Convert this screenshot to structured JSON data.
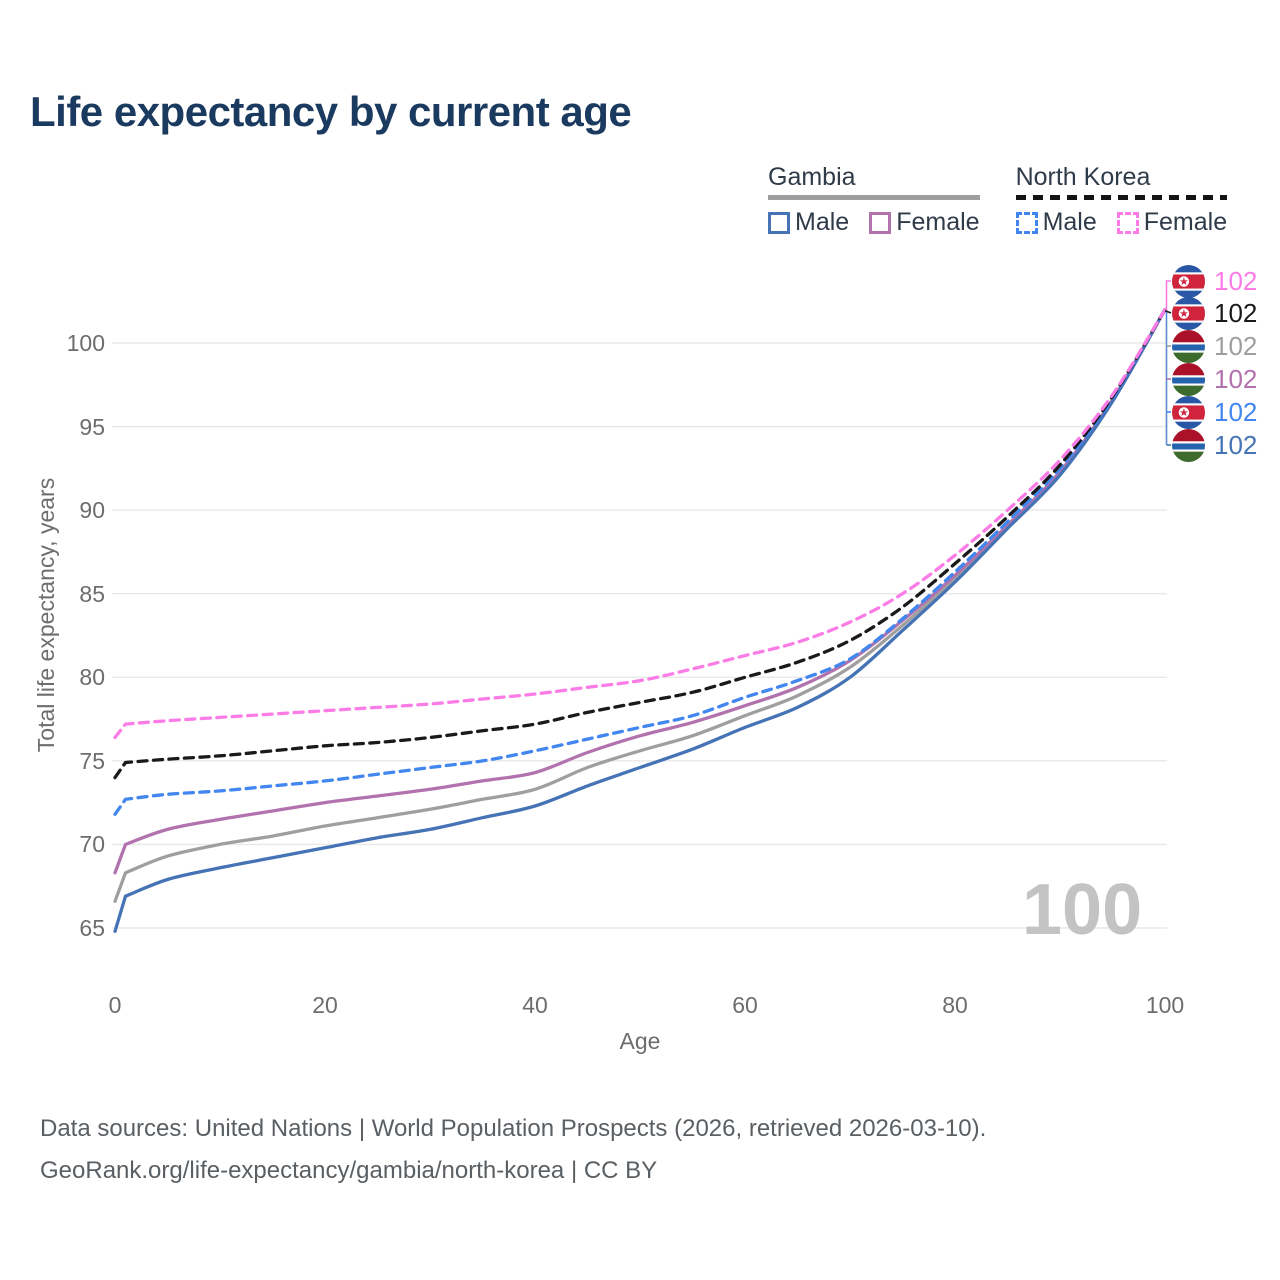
{
  "title": "Life expectancy by current age",
  "legend": {
    "groups": [
      {
        "country": "Gambia",
        "line_style": "solid",
        "underline_color": "#9e9e9e",
        "items": [
          {
            "label": "Male",
            "color": "#4573b5",
            "dashed": false
          },
          {
            "label": "Female",
            "color": "#b172ad",
            "dashed": false
          }
        ]
      },
      {
        "country": "North Korea",
        "line_style": "dashed",
        "underline_color": "#141414",
        "items": [
          {
            "label": "Male",
            "color": "#4286f0",
            "dashed": true
          },
          {
            "label": "Female",
            "color": "#fb7ce6",
            "dashed": true
          }
        ]
      }
    ]
  },
  "chart_data": {
    "type": "line",
    "title": "Life expectancy by current age",
    "xlabel": "Age",
    "ylabel": "Total life expectancy, years",
    "x_ticks": [
      0,
      20,
      40,
      60,
      80,
      100
    ],
    "y_ticks": [
      65,
      70,
      75,
      80,
      85,
      90,
      95,
      100
    ],
    "x_range": [
      0,
      100
    ],
    "y_range": [
      65,
      102
    ],
    "grid": "horizontal",
    "legend_position": "top-right",
    "ages": [
      0,
      1,
      5,
      10,
      15,
      20,
      25,
      30,
      35,
      40,
      45,
      50,
      55,
      60,
      65,
      70,
      75,
      80,
      85,
      90,
      95,
      100
    ],
    "series": [
      {
        "name": "Gambia (both sexes)",
        "country": "Gambia",
        "sex": "both",
        "color": "#9f9fa0",
        "dashed": false,
        "values": [
          66.6,
          68.3,
          69.3,
          70.0,
          70.5,
          71.1,
          71.6,
          72.1,
          72.7,
          73.3,
          74.6,
          75.6,
          76.5,
          77.7,
          78.9,
          80.6,
          83.1,
          85.9,
          89.0,
          92.2,
          96.6,
          102
        ]
      },
      {
        "name": "Gambia Female",
        "country": "Gambia",
        "sex": "female",
        "color": "#b172ad",
        "dashed": false,
        "values": [
          68.3,
          70.0,
          70.9,
          71.5,
          72.0,
          72.5,
          72.9,
          73.3,
          73.8,
          74.3,
          75.5,
          76.5,
          77.3,
          78.3,
          79.4,
          81.0,
          83.4,
          86.1,
          89.1,
          92.3,
          96.6,
          102
        ]
      },
      {
        "name": "Gambia Male",
        "country": "Gambia",
        "sex": "male",
        "color": "#4573b5",
        "dashed": false,
        "values": [
          64.8,
          66.9,
          67.9,
          68.6,
          69.2,
          69.8,
          70.4,
          70.9,
          71.6,
          72.3,
          73.5,
          74.6,
          75.7,
          77.0,
          78.2,
          80.0,
          82.8,
          85.7,
          88.9,
          92.1,
          96.5,
          102
        ]
      },
      {
        "name": "North Korea Male",
        "country": "North Korea",
        "sex": "male",
        "color": "#4286f0",
        "dashed": true,
        "values": [
          71.8,
          72.7,
          73.0,
          73.2,
          73.5,
          73.8,
          74.2,
          74.6,
          75.0,
          75.6,
          76.3,
          77.0,
          77.7,
          78.8,
          79.8,
          81.1,
          83.5,
          86.3,
          89.3,
          92.5,
          96.7,
          102
        ]
      },
      {
        "name": "North Korea (both sexes)",
        "country": "North Korea",
        "sex": "both",
        "color": "#1a1a1a",
        "dashed": true,
        "values": [
          74.0,
          74.9,
          75.1,
          75.3,
          75.6,
          75.9,
          76.1,
          76.4,
          76.8,
          77.2,
          77.9,
          78.5,
          79.1,
          80.0,
          80.9,
          82.2,
          84.2,
          86.8,
          89.6,
          92.7,
          96.8,
          102
        ]
      },
      {
        "name": "North Korea Female",
        "country": "North Korea",
        "sex": "female",
        "color": "#fb7ce6",
        "dashed": true,
        "values": [
          76.4,
          77.2,
          77.4,
          77.6,
          77.8,
          78.0,
          78.2,
          78.4,
          78.7,
          79.0,
          79.4,
          79.8,
          80.5,
          81.3,
          82.1,
          83.3,
          85.0,
          87.3,
          90.0,
          93.0,
          96.9,
          102
        ]
      }
    ]
  },
  "end_labels": [
    {
      "flag": "north-korea",
      "value": "102",
      "color": "#fb7ce6"
    },
    {
      "flag": "north-korea",
      "value": "102",
      "color": "#1a1a1a"
    },
    {
      "flag": "gambia",
      "value": "102",
      "color": "#9f9fa0"
    },
    {
      "flag": "gambia",
      "value": "102",
      "color": "#b172ad"
    },
    {
      "flag": "north-korea",
      "value": "102",
      "color": "#4286f0"
    },
    {
      "flag": "gambia",
      "value": "102",
      "color": "#4573b5"
    }
  ],
  "watermark": "100",
  "footer": {
    "line1": "Data sources: United Nations | World Population Prospects (2026, retrieved 2026-03-10).",
    "line2": "GeoRank.org/life-expectancy/gambia/north-korea | CC BY"
  },
  "colors": {
    "title": "#1b3a5f",
    "axis_text": "#6d6d6d",
    "gridline": "#e8e8e8",
    "footer_text": "#5a5f63",
    "watermark": "#c3c3c3",
    "leader_vertical": "#5b8bd0"
  }
}
